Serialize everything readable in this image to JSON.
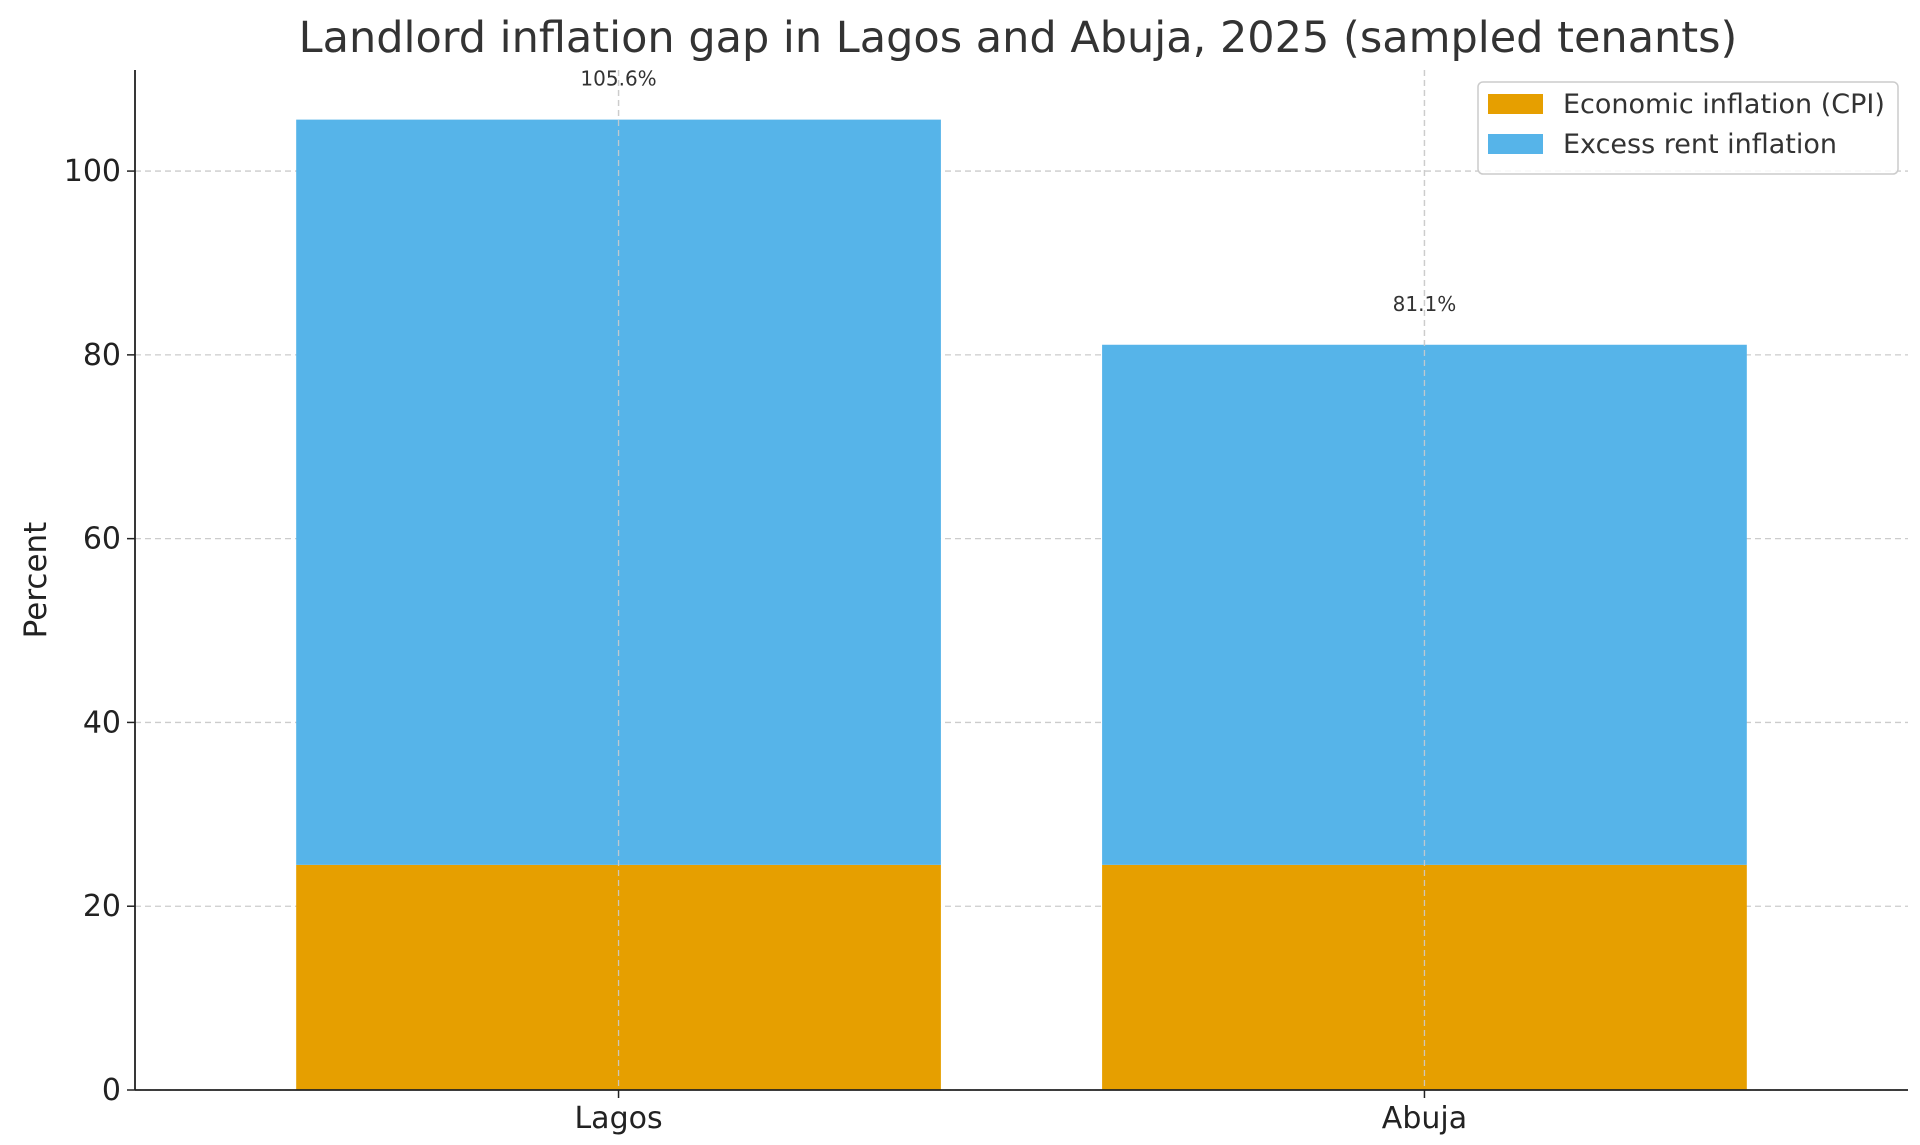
{
  "chart_data": {
    "type": "bar",
    "stacked": true,
    "title": "Landlord inflation gap in Lagos and Abuja, 2025 (sampled tenants)",
    "xlabel": "",
    "ylabel": "Percent",
    "categories": [
      "Lagos",
      "Abuja"
    ],
    "series": [
      {
        "name": "Economic inflation (CPI)",
        "color": "#E69F00",
        "values": [
          24.5,
          24.5
        ]
      },
      {
        "name": "Excess rent inflation",
        "color": "#56B4E9",
        "values": [
          81.1,
          56.6
        ]
      }
    ],
    "totals": [
      105.6,
      81.1
    ],
    "total_labels": [
      "105.6%",
      "81.1%"
    ],
    "ylim": [
      0,
      111
    ],
    "yticks": [
      0,
      20,
      40,
      60,
      80,
      100
    ],
    "grid": true,
    "legend_position": "top-right"
  }
}
